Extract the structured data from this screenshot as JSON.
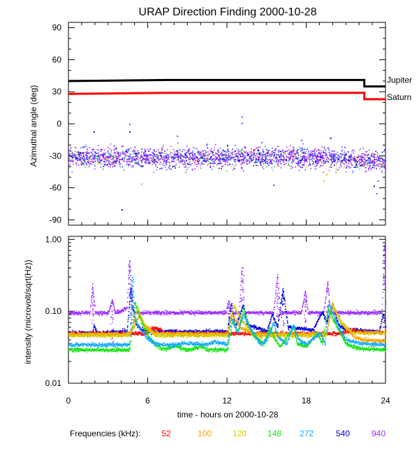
{
  "chart_data": {
    "type": "scatter",
    "title": "URAP Direction Finding  2000-10-28",
    "xlabel": "time - hours on 2000-10-28",
    "x_ticks": [
      "0",
      "6",
      "12",
      "18",
      "24"
    ],
    "xlim": [
      0,
      24
    ],
    "frequency_legend_label": "Frequencies (kHz):",
    "frequencies": [
      {
        "name": "52",
        "color": "#ff0000"
      },
      {
        "name": "100",
        "color": "#ffa500"
      },
      {
        "name": "120",
        "color": "#d8c800"
      },
      {
        "name": "148",
        "color": "#11e511"
      },
      {
        "name": "272",
        "color": "#12aaff"
      },
      {
        "name": "540",
        "color": "#0000dd"
      },
      {
        "name": "940",
        "color": "#9b30ff"
      }
    ],
    "panels": [
      {
        "id": "azimuth",
        "ylabel": "Azimuthal angle (deg)",
        "ylim": [
          -95,
          95
        ],
        "y_ticks": [
          "90",
          "60",
          "30",
          "0",
          "-30",
          "-60",
          "-90"
        ],
        "reference_lines": [
          {
            "name": "Jupiter",
            "color": "#000000",
            "steps": [
              [
                0,
                40
              ],
              [
                7.5,
                41
              ],
              [
                22.4,
                41
              ],
              [
                22.4,
                35
              ],
              [
                24,
                35
              ]
            ]
          },
          {
            "name": "Saturn",
            "color": "#ff0000",
            "steps": [
              [
                0,
                28
              ],
              [
                7.5,
                29
              ],
              [
                22.4,
                29
              ],
              [
                22.4,
                23
              ],
              [
                24,
                23
              ]
            ]
          }
        ],
        "scatter_summary": {
          "center_deg": -31,
          "spread_deg": 6,
          "end_center_deg": -36,
          "outliers": [
            {
              "x": 1.9,
              "y": -7,
              "freq": "540"
            },
            {
              "x": 4.6,
              "y": 0,
              "freq": "940"
            },
            {
              "x": 4.6,
              "y": -7,
              "freq": "540"
            },
            {
              "x": 5.5,
              "y": -56,
              "freq": "100"
            },
            {
              "x": 4.0,
              "y": -80,
              "freq": "540"
            },
            {
              "x": 13.1,
              "y": 7,
              "freq": "940"
            },
            {
              "x": 13.1,
              "y": 1,
              "freq": "940"
            },
            {
              "x": 12.0,
              "y": -20,
              "freq": "540"
            },
            {
              "x": 14.6,
              "y": -17,
              "freq": "940"
            },
            {
              "x": 19.8,
              "y": -13,
              "freq": "540"
            },
            {
              "x": 19.7,
              "y": -43,
              "freq": "100"
            },
            {
              "x": 19.5,
              "y": -47,
              "freq": "100"
            },
            {
              "x": 20.2,
              "y": -45,
              "freq": "100"
            },
            {
              "x": 19.3,
              "y": -53,
              "freq": "100"
            },
            {
              "x": 15.5,
              "y": -57,
              "freq": "940"
            },
            {
              "x": 23.1,
              "y": -58,
              "freq": "540"
            },
            {
              "x": 23.3,
              "y": -65,
              "freq": "940"
            },
            {
              "x": 23.4,
              "y": -53,
              "freq": "940"
            },
            {
              "x": 8.2,
              "y": -11,
              "freq": "940"
            },
            {
              "x": 17.6,
              "y": -15,
              "freq": "940"
            }
          ]
        }
      },
      {
        "id": "intensity",
        "ylabel": "intensity (microvolt/sqrt(Hz))",
        "scale": "log",
        "ylim": [
          0.01,
          1.1
        ],
        "y_ticks": [
          "1.00",
          "0.10",
          "0.01"
        ],
        "series": [
          {
            "freq": "940",
            "color": "#9b30ff",
            "points": [
              [
                0,
                0.095
              ],
              [
                1.6,
                0.095
              ],
              [
                1.8,
                0.23
              ],
              [
                2.0,
                0.095
              ],
              [
                3.0,
                0.095
              ],
              [
                3.3,
                0.14
              ],
              [
                3.5,
                0.095
              ],
              [
                4.4,
                0.11
              ],
              [
                4.6,
                0.52
              ],
              [
                4.8,
                0.11
              ],
              [
                5.0,
                0.095
              ],
              [
                11.9,
                0.095
              ],
              [
                12.1,
                0.14
              ],
              [
                12.3,
                0.095
              ],
              [
                12.9,
                0.095
              ],
              [
                13.1,
                0.42
              ],
              [
                13.3,
                0.095
              ],
              [
                15.5,
                0.095
              ],
              [
                15.8,
                0.32
              ],
              [
                16.0,
                0.095
              ],
              [
                17.6,
                0.095
              ],
              [
                17.9,
                0.19
              ],
              [
                18.1,
                0.095
              ],
              [
                19.3,
                0.095
              ],
              [
                19.6,
                0.26
              ],
              [
                19.8,
                0.095
              ],
              [
                23.7,
                0.095
              ],
              [
                23.9,
                0.85
              ],
              [
                24,
                0.12
              ]
            ]
          },
          {
            "freq": "540",
            "color": "#0000dd",
            "points": [
              [
                0,
                0.05
              ],
              [
                1.8,
                0.05
              ],
              [
                1.9,
                0.065
              ],
              [
                2.1,
                0.05
              ],
              [
                4.4,
                0.052
              ],
              [
                4.7,
                0.21
              ],
              [
                5.0,
                0.07
              ],
              [
                5.5,
                0.055
              ],
              [
                6.5,
                0.052
              ],
              [
                12.0,
                0.052
              ],
              [
                12.3,
                0.13
              ],
              [
                12.6,
                0.06
              ],
              [
                13.2,
                0.12
              ],
              [
                13.5,
                0.065
              ],
              [
                15.0,
                0.052
              ],
              [
                15.4,
                0.09
              ],
              [
                15.8,
                0.06
              ],
              [
                16.2,
                0.2
              ],
              [
                16.6,
                0.06
              ],
              [
                18.5,
                0.055
              ],
              [
                19.2,
                0.1
              ],
              [
                19.5,
                0.07
              ],
              [
                20.0,
                0.12
              ],
              [
                20.4,
                0.065
              ],
              [
                21.0,
                0.055
              ],
              [
                23.5,
                0.052
              ],
              [
                23.8,
                0.095
              ],
              [
                24,
                0.06
              ]
            ]
          },
          {
            "freq": "52",
            "color": "#ff0000",
            "points": [
              [
                0,
                0.049
              ],
              [
                5.8,
                0.049
              ],
              [
                6.3,
                0.058
              ],
              [
                7.0,
                0.056
              ],
              [
                7.2,
                0.049
              ],
              [
                20.5,
                0.049
              ],
              [
                21.5,
                0.054
              ],
              [
                22.2,
                0.051
              ],
              [
                24,
                0.051
              ]
            ]
          },
          {
            "freq": "100",
            "color": "#ffa500",
            "points": [
              [
                0,
                0.048
              ],
              [
                4.6,
                0.048
              ],
              [
                5.3,
                0.085
              ],
              [
                5.8,
                0.062
              ],
              [
                6.5,
                0.05
              ],
              [
                7.0,
                0.049
              ],
              [
                12.0,
                0.048
              ],
              [
                12.3,
                0.09
              ],
              [
                13.0,
                0.06
              ],
              [
                14.0,
                0.048
              ],
              [
                19.5,
                0.048
              ],
              [
                20.0,
                0.12
              ],
              [
                20.6,
                0.07
              ],
              [
                21.5,
                0.046
              ],
              [
                22.2,
                0.04
              ],
              [
                24,
                0.038
              ]
            ]
          },
          {
            "freq": "120",
            "color": "#d8c800",
            "points": [
              [
                0,
                0.046
              ],
              [
                4.6,
                0.046
              ],
              [
                5.2,
                0.11
              ],
              [
                5.8,
                0.06
              ],
              [
                6.5,
                0.046
              ],
              [
                12.0,
                0.046
              ],
              [
                12.5,
                0.12
              ],
              [
                13.2,
                0.07
              ],
              [
                14.0,
                0.046
              ],
              [
                19.5,
                0.046
              ],
              [
                19.9,
                0.13
              ],
              [
                20.6,
                0.07
              ],
              [
                21.5,
                0.05
              ],
              [
                24,
                0.05
              ]
            ]
          },
          {
            "freq": "148",
            "color": "#11e511",
            "points": [
              [
                0,
                0.029
              ],
              [
                4.6,
                0.029
              ],
              [
                5.0,
                0.13
              ],
              [
                5.5,
                0.07
              ],
              [
                6.0,
                0.045
              ],
              [
                6.5,
                0.035
              ],
              [
                7.0,
                0.03
              ],
              [
                7.5,
                0.03
              ],
              [
                8.0,
                0.033
              ],
              [
                9.0,
                0.029
              ],
              [
                10.0,
                0.032
              ],
              [
                10.5,
                0.029
              ],
              [
                12.0,
                0.029
              ],
              [
                12.4,
                0.075
              ],
              [
                12.8,
                0.05
              ],
              [
                13.2,
                0.11
              ],
              [
                13.7,
                0.06
              ],
              [
                14.0,
                0.045
              ],
              [
                14.8,
                0.035
              ],
              [
                15.2,
                0.06
              ],
              [
                15.6,
                0.04
              ],
              [
                16.0,
                0.032
              ],
              [
                17.0,
                0.06
              ],
              [
                17.3,
                0.035
              ],
              [
                18.0,
                0.032
              ],
              [
                18.8,
                0.05
              ],
              [
                19.2,
                0.035
              ],
              [
                19.6,
                0.11
              ],
              [
                20.3,
                0.06
              ],
              [
                21.0,
                0.035
              ],
              [
                22.0,
                0.03
              ],
              [
                24,
                0.029
              ]
            ]
          },
          {
            "freq": "272",
            "color": "#12aaff",
            "points": [
              [
                0,
                0.034
              ],
              [
                4.6,
                0.034
              ],
              [
                4.8,
                0.3
              ],
              [
                5.0,
                0.08
              ],
              [
                5.3,
                0.06
              ],
              [
                5.8,
                0.045
              ],
              [
                6.5,
                0.035
              ],
              [
                8.0,
                0.034
              ],
              [
                9.0,
                0.036
              ],
              [
                10.5,
                0.034
              ],
              [
                11.0,
                0.038
              ],
              [
                12.0,
                0.034
              ],
              [
                12.3,
                0.08
              ],
              [
                12.8,
                0.05
              ],
              [
                13.2,
                0.09
              ],
              [
                13.8,
                0.055
              ],
              [
                14.5,
                0.035
              ],
              [
                15.0,
                0.04
              ],
              [
                15.5,
                0.07
              ],
              [
                15.8,
                0.045
              ],
              [
                16.5,
                0.035
              ],
              [
                17.0,
                0.065
              ],
              [
                17.4,
                0.04
              ],
              [
                18.0,
                0.035
              ],
              [
                19.0,
                0.05
              ],
              [
                19.4,
                0.035
              ],
              [
                19.7,
                0.13
              ],
              [
                20.4,
                0.06
              ],
              [
                21.0,
                0.04
              ],
              [
                21.8,
                0.036
              ],
              [
                22.5,
                0.035
              ],
              [
                24,
                0.034
              ]
            ]
          }
        ]
      }
    ],
    "reference_lines": [
      {
        "name": "Jupiter",
        "color": "#000000"
      },
      {
        "name": "Saturn",
        "color": "#ff0000"
      }
    ]
  }
}
